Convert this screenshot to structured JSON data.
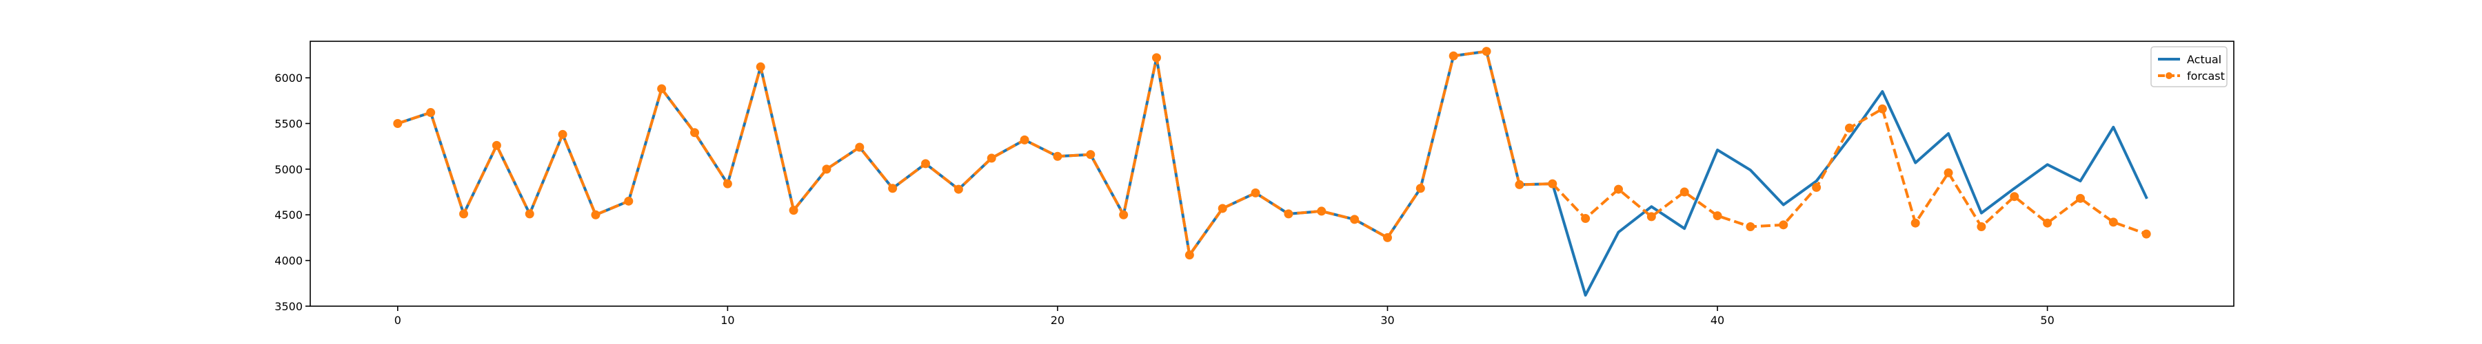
{
  "chart_data": {
    "type": "line",
    "title": "",
    "xlabel": "",
    "ylabel": "",
    "xlim": [
      -2.65,
      55.65
    ],
    "ylim": [
      3500,
      6400
    ],
    "xticks": [
      0,
      10,
      20,
      30,
      40,
      50
    ],
    "yticks": [
      3500,
      4000,
      4500,
      5000,
      5500,
      6000
    ],
    "grid": false,
    "legend": {
      "placement": "top-right",
      "entries": [
        "Actual",
        "forcast"
      ]
    },
    "series": [
      {
        "name": "Actual",
        "color": "#1f77b4",
        "style": "solid",
        "marker": "none",
        "x": [
          0,
          1,
          2,
          3,
          4,
          5,
          6,
          7,
          8,
          9,
          10,
          11,
          12,
          13,
          14,
          15,
          16,
          17,
          18,
          19,
          20,
          21,
          22,
          23,
          24,
          25,
          26,
          27,
          28,
          29,
          30,
          31,
          32,
          33,
          34,
          35,
          36,
          37,
          38,
          39,
          40,
          41,
          42,
          43,
          44,
          45,
          46,
          47,
          48,
          49,
          50,
          51,
          52,
          53
        ],
        "values": [
          5500,
          5620,
          4510,
          5260,
          4510,
          5380,
          4500,
          4650,
          5880,
          5400,
          4840,
          6120,
          4550,
          5000,
          5240,
          4790,
          5060,
          4780,
          5120,
          5320,
          5140,
          5160,
          4500,
          6220,
          4060,
          4570,
          4740,
          4510,
          4540,
          4450,
          4250,
          4790,
          6240,
          6290,
          4830,
          4840,
          3620,
          4310,
          4590,
          4350,
          5210,
          4990,
          4610,
          4870,
          5340,
          5850,
          5070,
          5390,
          4520,
          4790,
          5050,
          4870,
          5460,
          4690
        ]
      },
      {
        "name": "forcast",
        "color": "#ff7f0e",
        "style": "dashed",
        "marker": "circle",
        "x": [
          0,
          1,
          2,
          3,
          4,
          5,
          6,
          7,
          8,
          9,
          10,
          11,
          12,
          13,
          14,
          15,
          16,
          17,
          18,
          19,
          20,
          21,
          22,
          23,
          24,
          25,
          26,
          27,
          28,
          29,
          30,
          31,
          32,
          33,
          34,
          35,
          36,
          37,
          38,
          39,
          40,
          41,
          42,
          43,
          44,
          45,
          46,
          47,
          48,
          49,
          50,
          51,
          52,
          53
        ],
        "values": [
          5500,
          5620,
          4510,
          5260,
          4510,
          5380,
          4500,
          4650,
          5880,
          5400,
          4840,
          6120,
          4550,
          5000,
          5240,
          4790,
          5060,
          4780,
          5120,
          5320,
          5140,
          5160,
          4500,
          6220,
          4060,
          4570,
          4740,
          4510,
          4540,
          4450,
          4250,
          4790,
          6240,
          6290,
          4830,
          4840,
          4460,
          4780,
          4480,
          4750,
          4490,
          4370,
          4390,
          4800,
          5450,
          5660,
          4410,
          4960,
          4370,
          4700,
          4410,
          4680,
          4420,
          4290
        ]
      }
    ]
  }
}
